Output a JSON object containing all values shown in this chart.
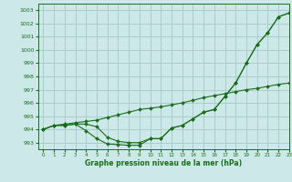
{
  "title": "Graphe pression niveau de la mer (hPa)",
  "bg_color": "#cce8e8",
  "grid_color": "#aacccc",
  "line_color": "#1a6e1a",
  "marker_color": "#1a6e1a",
  "xlim": [
    -0.5,
    23
  ],
  "ylim": [
    992.5,
    1003.5
  ],
  "yticks": [
    993,
    994,
    995,
    996,
    997,
    998,
    999,
    1000,
    1001,
    1002,
    1003
  ],
  "xticks": [
    0,
    1,
    2,
    3,
    4,
    5,
    6,
    7,
    8,
    9,
    10,
    11,
    12,
    13,
    14,
    15,
    16,
    17,
    18,
    19,
    20,
    21,
    22,
    23
  ],
  "line1": [
    994.0,
    994.3,
    994.3,
    994.4,
    993.9,
    993.3,
    992.9,
    992.85,
    992.8,
    992.8,
    993.3,
    993.3,
    994.1,
    994.3,
    994.8,
    995.3,
    995.5,
    996.5,
    997.5,
    999.0,
    1000.4,
    1001.3,
    1002.5,
    1002.8
  ],
  "line2": [
    994.0,
    994.3,
    994.3,
    994.4,
    994.4,
    994.2,
    993.4,
    993.1,
    993.0,
    993.0,
    993.3,
    993.3,
    994.1,
    994.3,
    994.8,
    995.3,
    995.5,
    996.5,
    997.5,
    999.0,
    1000.4,
    1001.3,
    1002.5,
    1002.8
  ],
  "line3": [
    994.0,
    994.3,
    994.4,
    994.5,
    994.6,
    994.7,
    994.9,
    995.1,
    995.3,
    995.5,
    995.6,
    995.7,
    995.85,
    996.0,
    996.2,
    996.4,
    996.55,
    996.7,
    996.85,
    997.0,
    997.1,
    997.25,
    997.4,
    997.5
  ]
}
